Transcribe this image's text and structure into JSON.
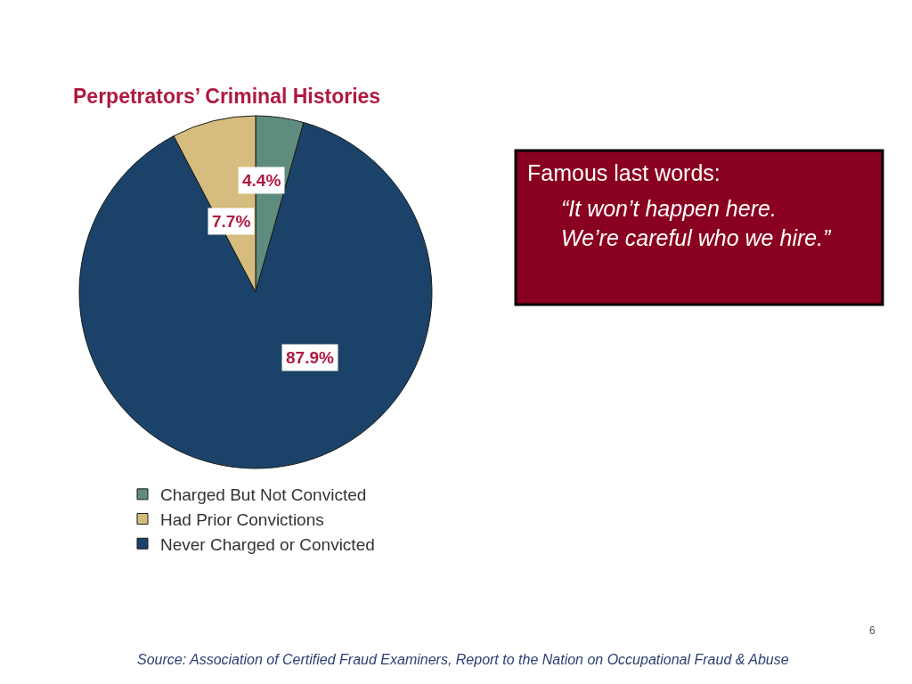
{
  "chart_data": {
    "type": "pie",
    "title": "Perpetrators’ Criminal Histories",
    "categories": [
      "Charged But Not Convicted",
      "Had Prior Convictions",
      "Never Charged or Convicted"
    ],
    "values": [
      4.4,
      7.7,
      87.9
    ],
    "colors": [
      "#5e8c7e",
      "#d6bc7e",
      "#1b4369"
    ],
    "value_labels": [
      "4.4%",
      "7.7%",
      "87.9%"
    ],
    "legend": "bottom",
    "annotations": [
      "Famous last words:",
      "“It won’t happen here.\nWe’re careful who we hire.”",
      "6",
      "Source: Association of Certified Fraud Examiners, Report to the Nation on Occupational Fraud & Abuse"
    ]
  }
}
